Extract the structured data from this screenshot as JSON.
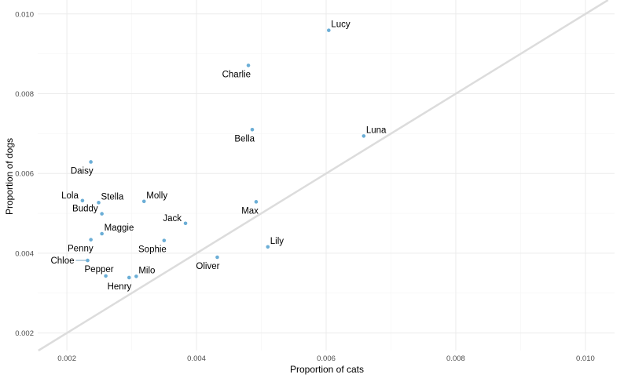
{
  "chart_data": {
    "type": "scatter",
    "xlabel": "Proportion of cats",
    "ylabel": "Proportion of dogs",
    "xlim": [
      0.00155,
      0.01045
    ],
    "ylim": [
      0.00156,
      0.01035
    ],
    "x_ticks": [
      0.002,
      0.004,
      0.006,
      0.008,
      0.01
    ],
    "y_ticks": [
      0.002,
      0.004,
      0.006,
      0.008,
      0.01
    ],
    "x_tick_labels": [
      "0.002",
      "0.004",
      "0.006",
      "0.008",
      "0.010"
    ],
    "y_tick_labels": [
      "0.002",
      "0.004",
      "0.006",
      "0.008",
      "0.010"
    ],
    "grid": true,
    "reference_line": "y = x",
    "point_color": "#6baed6",
    "line_color": "#dcdcdc",
    "points": [
      {
        "name": "Lucy",
        "x": 0.00604,
        "y": 0.00959,
        "label_pos": "right"
      },
      {
        "name": "Charlie",
        "x": 0.0048,
        "y": 0.00871,
        "label_pos": "below-left"
      },
      {
        "name": "Bella",
        "x": 0.00486,
        "y": 0.0071,
        "label_pos": "below-left"
      },
      {
        "name": "Luna",
        "x": 0.00658,
        "y": 0.00694,
        "label_pos": "right"
      },
      {
        "name": "Daisy",
        "x": 0.00237,
        "y": 0.00629,
        "label_pos": "below-left"
      },
      {
        "name": "Lola",
        "x": 0.00224,
        "y": 0.00532,
        "label_pos": "left"
      },
      {
        "name": "Stella",
        "x": 0.00249,
        "y": 0.00527,
        "label_pos": "right"
      },
      {
        "name": "Molly",
        "x": 0.00319,
        "y": 0.0053,
        "label_pos": "right"
      },
      {
        "name": "Buddy",
        "x": 0.00254,
        "y": 0.00499,
        "label_pos": "left"
      },
      {
        "name": "Max",
        "x": 0.00492,
        "y": 0.00529,
        "label_pos": "below-left"
      },
      {
        "name": "Jack",
        "x": 0.00383,
        "y": 0.00475,
        "label_pos": "left"
      },
      {
        "name": "Maggie",
        "x": 0.00254,
        "y": 0.00449,
        "label_pos": "right"
      },
      {
        "name": "Sophie",
        "x": 0.0035,
        "y": 0.00432,
        "label_pos": "below-left"
      },
      {
        "name": "Penny",
        "x": 0.00237,
        "y": 0.00434,
        "label_pos": "below-left"
      },
      {
        "name": "Lily",
        "x": 0.0051,
        "y": 0.00416,
        "label_pos": "right"
      },
      {
        "name": "Oliver",
        "x": 0.00432,
        "y": 0.0039,
        "label_pos": "below-left"
      },
      {
        "name": "Chloe",
        "x": 0.00232,
        "y": 0.00382,
        "label_pos": "leader-left"
      },
      {
        "name": "Pepper",
        "x": 0.0026,
        "y": 0.00343,
        "label_pos": "above-left"
      },
      {
        "name": "Milo",
        "x": 0.00307,
        "y": 0.00342,
        "label_pos": "right"
      },
      {
        "name": "Henry",
        "x": 0.00296,
        "y": 0.00339,
        "label_pos": "below-left"
      }
    ]
  }
}
